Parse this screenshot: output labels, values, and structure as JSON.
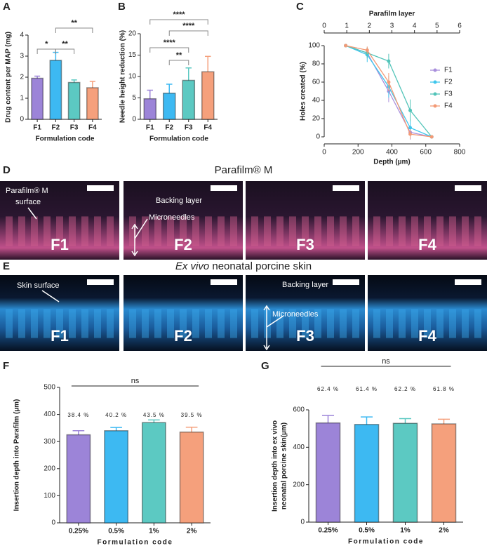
{
  "chart_data": [
    {
      "type": "bar",
      "panel": "A",
      "categories": [
        "F1",
        "F2",
        "F3",
        "F4"
      ],
      "values": [
        1.95,
        2.8,
        1.75,
        1.5
      ],
      "errors": [
        0.1,
        0.38,
        0.12,
        0.3
      ],
      "colors": [
        "#9c84d8",
        "#3db9f2",
        "#5cc9c2",
        "#f5a07c"
      ],
      "ylabel": "Drug content per MAP (mg)",
      "xlabel": "Formulation code",
      "ylim": [
        0,
        4
      ],
      "yticks": [
        0,
        1,
        2,
        3,
        4
      ],
      "bracket_style": "bracket",
      "brackets": [
        {
          "between": [
            "F1",
            "F2"
          ],
          "label": "*"
        },
        {
          "between": [
            "F2",
            "F3"
          ],
          "label": "**"
        },
        {
          "between": [
            "F2",
            "F4"
          ],
          "label": "**"
        }
      ]
    },
    {
      "type": "bar",
      "panel": "B",
      "categories": [
        "F1",
        "F2",
        "F3",
        "F4"
      ],
      "values": [
        4.8,
        6.1,
        9.1,
        11.1
      ],
      "errors": [
        2.0,
        2.1,
        2.9,
        3.6
      ],
      "colors": [
        "#9c84d8",
        "#3db9f2",
        "#5cc9c2",
        "#f5a07c"
      ],
      "ylabel": "Needle height reduction (%)",
      "xlabel": "Formulation code",
      "ylim": [
        0,
        20
      ],
      "yticks": [
        0,
        5,
        10,
        15,
        20
      ],
      "bracket_style": "bracket",
      "brackets": [
        {
          "between": [
            "F1",
            "F4"
          ],
          "label": "****"
        },
        {
          "between": [
            "F2",
            "F4"
          ],
          "label": "****"
        },
        {
          "between": [
            "F1",
            "F3"
          ],
          "label": "****"
        },
        {
          "between": [
            "F2",
            "F3"
          ],
          "label": "**"
        }
      ]
    },
    {
      "type": "line",
      "panel": "C",
      "x": [
        127,
        254,
        381,
        508,
        635
      ],
      "series": [
        {
          "name": "F1",
          "color": "#a98fdc",
          "values": [
            100,
            92,
            50,
            5,
            0
          ],
          "errors": [
            0,
            5,
            12,
            8,
            0
          ]
        },
        {
          "name": "F2",
          "color": "#3fc6ec",
          "values": [
            100,
            90,
            55,
            10,
            0
          ],
          "errors": [
            0,
            8,
            12,
            10,
            0
          ]
        },
        {
          "name": "F3",
          "color": "#52c4b9",
          "values": [
            100,
            92,
            83,
            29,
            0
          ],
          "errors": [
            0,
            6,
            8,
            12,
            0
          ]
        },
        {
          "name": "F4",
          "color": "#f39a76",
          "values": [
            100,
            95,
            60,
            3,
            0
          ],
          "errors": [
            0,
            4,
            10,
            5,
            0
          ]
        }
      ],
      "xlabel": "Depth (µm)",
      "ylabel": "Holes created (%)",
      "x2label": "Parafilm layer",
      "xlim": [
        0,
        800
      ],
      "xticks": [
        0,
        200,
        400,
        600,
        800
      ],
      "x2lim": [
        0,
        6
      ],
      "x2ticks": [
        0,
        1,
        2,
        3,
        4,
        5,
        6
      ],
      "ylim": [
        0,
        100
      ],
      "yticks": [
        0,
        20,
        40,
        60,
        80,
        100
      ],
      "legend": "right"
    },
    {
      "type": "bar",
      "panel": "F",
      "categories": [
        "0.25%",
        "0.5%",
        "1%",
        "2%"
      ],
      "values": [
        325,
        340,
        370,
        335
      ],
      "errors": [
        15,
        12,
        10,
        18
      ],
      "colors": [
        "#9c84d8",
        "#3db9f2",
        "#5cc9c2",
        "#f5a07c"
      ],
      "ylabel": "Insertion depth into Parafilm (µm)",
      "xlabel": "Formulation code",
      "bar_annotations": [
        "38.4 %",
        "40.2 %",
        "43.5 %",
        "39.5 %"
      ],
      "ylim": [
        0,
        500
      ],
      "yticks": [
        0,
        100,
        200,
        300,
        400,
        500
      ],
      "bracket_style": "line",
      "brackets": [
        {
          "between": [
            "0.25%",
            "2%"
          ],
          "label": "ns"
        }
      ]
    },
    {
      "type": "bar",
      "panel": "G",
      "categories": [
        "0.25%",
        "0.5%",
        "1%",
        "2%"
      ],
      "values": [
        530,
        522,
        528,
        525
      ],
      "errors": [
        40,
        40,
        25,
        25
      ],
      "colors": [
        "#9c84d8",
        "#3db9f2",
        "#5cc9c2",
        "#f5a07c"
      ],
      "ylabel": [
        "Insertion depth into ex vivo",
        "neonatal porcine skin(µm)"
      ],
      "xlabel": "Formulation code",
      "bar_annotations": [
        "62.4 %",
        "61.4 %",
        "62.2 %",
        "61.8 %"
      ],
      "ylim": [
        0,
        600
      ],
      "yticks": [
        0,
        200,
        400,
        600
      ],
      "bracket_style": "line",
      "brackets": [
        {
          "between": [
            "0.25%",
            "2%"
          ],
          "label": "ns"
        }
      ]
    }
  ],
  "panel_d": {
    "label": "D",
    "title": "Parafilm® M",
    "surface_label": [
      "Parafilm® M",
      "surface"
    ],
    "backing_label": "Backing layer",
    "needle_label": "Microneedles",
    "images": [
      "F1",
      "F2",
      "F3",
      "F4"
    ]
  },
  "panel_e": {
    "label": "E",
    "title_italic": "Ex vivo",
    "title": "neonatal porcine skin",
    "surface_label": [
      "Skin surface"
    ],
    "backing_label": "Backing layer",
    "needle_label": "Microneedles",
    "images": [
      "F1",
      "F2",
      "F3",
      "F4"
    ]
  }
}
